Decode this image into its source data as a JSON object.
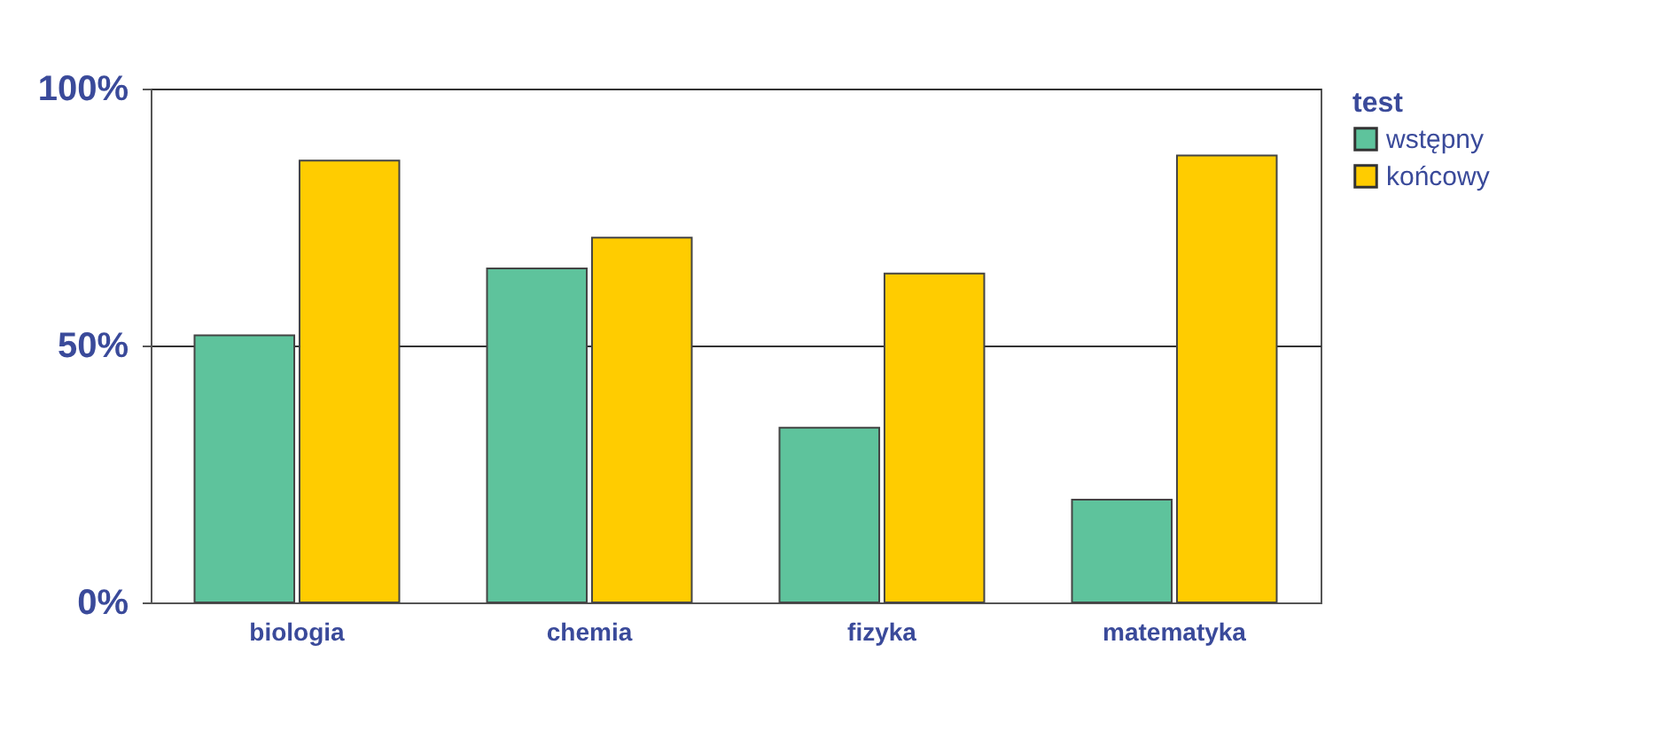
{
  "chart_data": {
    "type": "bar",
    "categories": [
      "biologia",
      "chemia",
      "fizyka",
      "matematyka"
    ],
    "series": [
      {
        "name": "wstępny",
        "color": "#5ec39c",
        "values": [
          52,
          65,
          34,
          20
        ]
      },
      {
        "name": "końcowy",
        "color": "#ffcc00",
        "values": [
          86,
          71,
          64,
          87
        ]
      }
    ],
    "legend_title": "test",
    "legend": "right",
    "ylim": [
      0,
      100
    ],
    "yticks": [
      {
        "value": 0,
        "label": "0%"
      },
      {
        "value": 50,
        "label": "50%"
      },
      {
        "value": 100,
        "label": "100%"
      }
    ],
    "grid": "y"
  }
}
